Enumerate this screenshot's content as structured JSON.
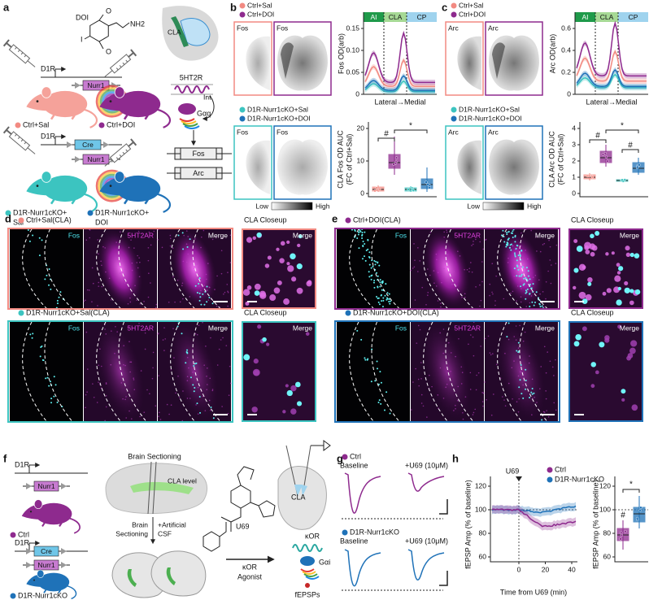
{
  "a": {
    "label": "a",
    "drug": "DOI",
    "amine": "NH2",
    "halogen": "I",
    "methoxy": [
      "O",
      "O"
    ],
    "ctrl_construct": {
      "promoter": "D1R",
      "gene": "Nurr1"
    },
    "cko_construct": {
      "promoter": "D1R",
      "cre": "Cre",
      "gene": "Nurr1"
    },
    "groups": [
      [
        "Ctrl+Sal"
      ],
      [
        "Ctrl+DOI"
      ],
      [
        "D1R-Nurr1cKO+",
        "Sal"
      ],
      [
        "D1R-Nurr1cKO+",
        "DOI"
      ]
    ],
    "region": "CLA",
    "receptor": "5HT2R",
    "internalization": "Int.",
    "g_protein": "Gαq",
    "genes": [
      "Fos",
      "Arc"
    ]
  },
  "b": {
    "label": "b",
    "legend_top": [
      "Ctrl+Sal",
      "Ctrl+DOI"
    ],
    "legend_bottom": [
      "D1R-Nurr1cKO+Sal",
      "D1R-Nurr1cKO+DOI"
    ],
    "image_labels": [
      "Fos",
      "Fos",
      "Fos",
      "Fos"
    ],
    "scale_low": "Low",
    "scale_high": "High",
    "regions": [
      "AI",
      "CLA",
      "CP"
    ],
    "line_ylabel": "Fos OD(arb)",
    "line_yticks": [
      "0.15",
      "0.10",
      "0.05",
      "0"
    ],
    "line_xlabel": "Lateral→Medial",
    "box_ylabel": [
      "CLA Fos OD AUC",
      "(FC of Ctrl+Sal)"
    ],
    "box_yticks": [
      "20",
      "10",
      "0"
    ],
    "sig": [
      "#",
      "*"
    ]
  },
  "c": {
    "label": "c",
    "legend_top": [
      "Ctrl+Sal",
      "Ctrl+DOI"
    ],
    "legend_bottom": [
      "D1R-Nurr1cKO+Sal",
      "D1R-Nurr1cKO+DOI"
    ],
    "image_labels": [
      "Arc",
      "Arc",
      "Arc",
      "Arc"
    ],
    "scale_low": "Low",
    "scale_high": "High",
    "regions": [
      "AI",
      "CLA",
      "CP"
    ],
    "line_ylabel": "Arc OD(arb)",
    "line_yticks": [
      "0.6",
      "0.4",
      "0.2",
      "0"
    ],
    "line_xlabel": "Lateral→Medial",
    "box_ylabel": [
      "CLA Arc OD AUC",
      "(FC of Ctrl+Sal)"
    ],
    "box_yticks": [
      "4",
      "3",
      "2",
      "1",
      "0"
    ],
    "sig": [
      "#",
      "#",
      "*"
    ]
  },
  "d": {
    "label": "d",
    "rows": [
      {
        "title": "Ctrl+Sal(CLA)",
        "channels": [
          "Fos",
          "5HT2AR",
          "Merge"
        ],
        "closeup": "CLA Closeup",
        "closeup_channel": "Merge"
      },
      {
        "title": "D1R-Nurr1cKO+Sal(CLA)",
        "channels": [
          "Fos",
          "5HT2AR",
          "Merge"
        ],
        "closeup": "CLA Closeup",
        "closeup_channel": "Merge"
      }
    ]
  },
  "e": {
    "label": "e",
    "rows": [
      {
        "title": "Ctrl+DOI(CLA)",
        "channels": [
          "Fos",
          "5HT2AR",
          "Merge"
        ],
        "closeup": "CLA Closeup",
        "closeup_channel": "Merge"
      },
      {
        "title": "D1R-Nurr1cKO+DOI(CLA)",
        "channels": [
          "Fos",
          "5HT2AR",
          "Merge"
        ],
        "closeup": "CLA Closeup",
        "closeup_channel": "Merge"
      }
    ]
  },
  "f": {
    "label": "f",
    "ctrl_construct": {
      "promoter": "D1R",
      "gene": "Nurr1"
    },
    "ctrl_group": "Ctrl",
    "cko_construct": {
      "promoter": "D1R",
      "cre": "Cre",
      "gene": "Nurr1"
    },
    "cko_group": "D1R-Nurr1cKO",
    "step1": "Brain Sectioning",
    "level": "CLA level",
    "step2": [
      "Brain",
      "Sectioning"
    ],
    "csf": [
      "+Artificial",
      "CSF"
    ],
    "drug": "U69",
    "agonist": [
      "κOR",
      "Agonist"
    ],
    "region": "CLA",
    "receptor": "κOR",
    "g_protein": "Gαi",
    "readout": "fEPSPs"
  },
  "g": {
    "label": "g",
    "groups": [
      {
        "name": "Ctrl",
        "conditions": [
          "Baseline",
          "+U69 (10μM)"
        ]
      },
      {
        "name": "D1R-Nurr1cKO",
        "conditions": [
          "Baseline",
          "+U69 (10μM)"
        ]
      }
    ]
  },
  "h": {
    "label": "h",
    "drug": "U69",
    "legend": [
      "Ctrl",
      "D1R-Nurr1cKO"
    ],
    "ylabel": "fEPSP Amp (% of baseline)",
    "yticks": [
      "120",
      "100",
      "80",
      "60"
    ],
    "xticks": [
      "0",
      "20",
      "40"
    ],
    "xlabel": "Time from U69 (min)",
    "box_ylabel": "fEPSP Amp (% of baseline)",
    "box_yticks": [
      "120",
      "100",
      "80",
      "60"
    ],
    "sig": [
      "#",
      "*"
    ]
  }
}
